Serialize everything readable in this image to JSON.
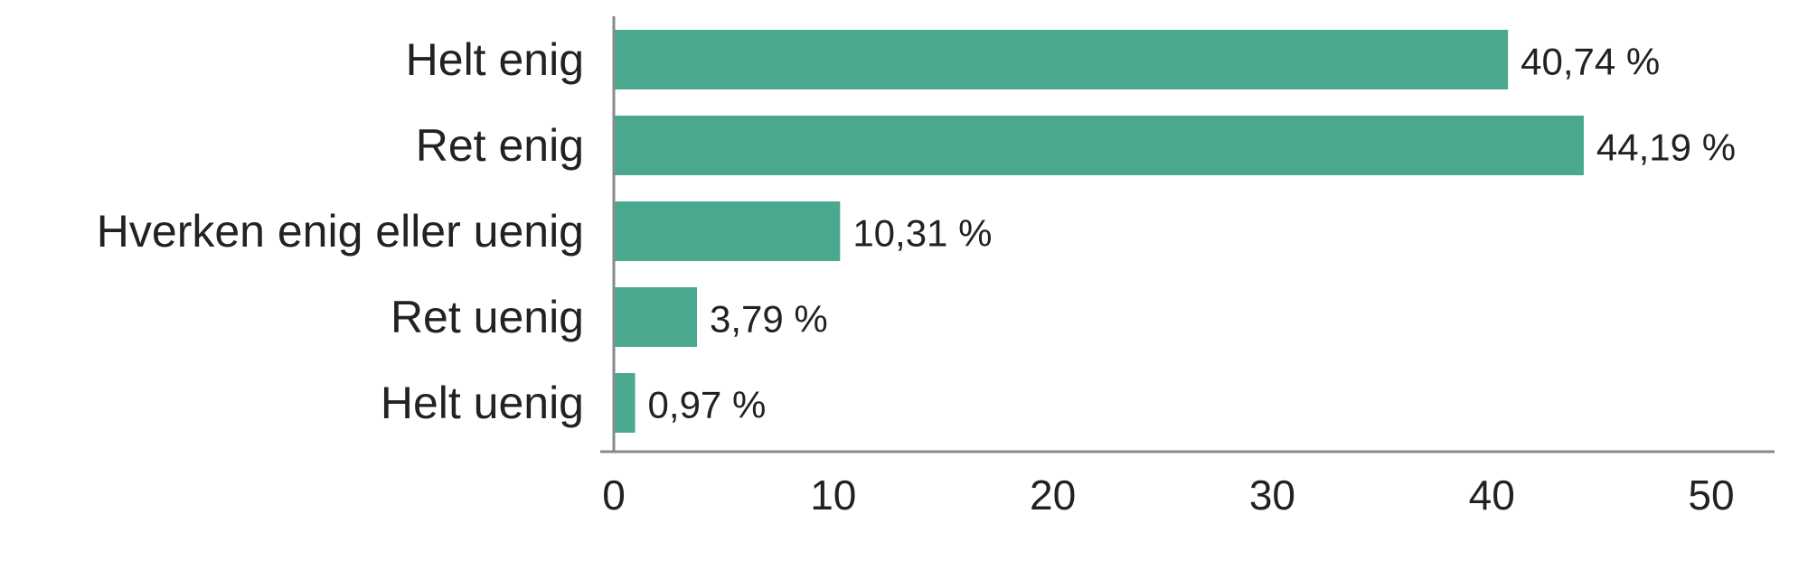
{
  "chart_data": {
    "type": "bar",
    "orientation": "horizontal",
    "categories": [
      "Helt enig",
      "Ret enig",
      "Hverken enig eller uenig",
      "Ret uenig",
      "Helt uenig"
    ],
    "values": [
      40.74,
      44.19,
      10.31,
      3.79,
      0.97
    ],
    "value_labels": [
      "40,74 %",
      "44,19 %",
      "10,31 %",
      "3,79 %",
      "0,97 %"
    ],
    "xlim": [
      0,
      50
    ],
    "xticks": [
      0,
      10,
      20,
      30,
      40,
      50
    ],
    "xtick_labels": [
      "0",
      "10",
      "20",
      "30",
      "40",
      "50"
    ],
    "grid": false,
    "bar_color": "#4aa88e"
  }
}
